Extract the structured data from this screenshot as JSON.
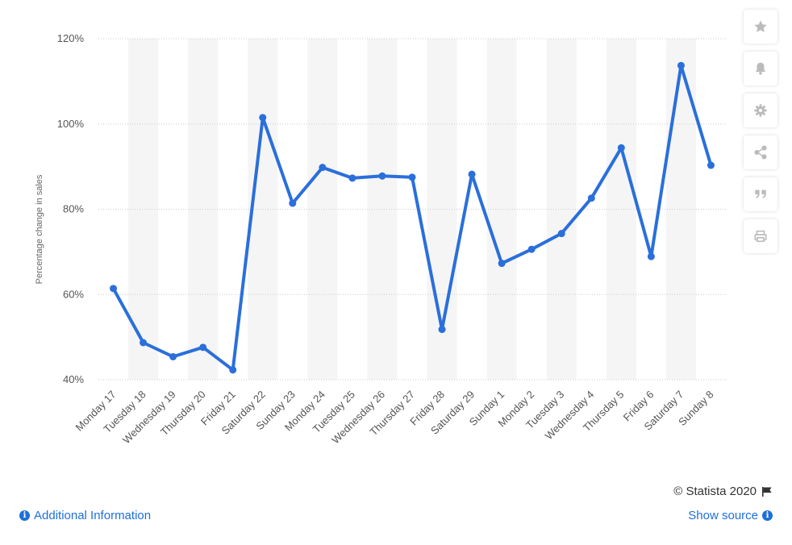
{
  "chart_data": {
    "type": "line",
    "ylabel": "Percentage change in sales",
    "xlabel": "",
    "ylim": [
      40,
      120
    ],
    "yticks": [
      40,
      60,
      80,
      100,
      120
    ],
    "ytick_labels": [
      "40%",
      "60%",
      "80%",
      "100%",
      "120%"
    ],
    "grid": "horizontal dotted, alternating vertical bands",
    "categories": [
      "Monday 17",
      "Tuesday 18",
      "Wednesday 19",
      "Thursday 20",
      "Friday 21",
      "Saturday 22",
      "Sunday 23",
      "Monday 24",
      "Tuesday 25",
      "Wednesday 26",
      "Thursday 27",
      "Friday 28",
      "Saturday 29",
      "Sunday 1",
      "Monday 2",
      "Tuesday 3",
      "Wednesday 4",
      "Thursday 5",
      "Friday 6",
      "Saturday 7",
      "Sunday 8"
    ],
    "series": [
      {
        "values": [
          61.4,
          48.7,
          45.4,
          47.6,
          42.3,
          101.5,
          81.4,
          89.8,
          87.3,
          87.8,
          87.5,
          51.8,
          88.2,
          67.3,
          70.6,
          74.3,
          82.6,
          94.4,
          68.9,
          113.7,
          90.3
        ]
      }
    ],
    "colors": {
      "line": "#2a6fdb",
      "band": "#f5f5f5",
      "grid": "#cccccc"
    }
  },
  "toolbar": {
    "buttons": [
      {
        "name": "star-icon"
      },
      {
        "name": "bell-icon"
      },
      {
        "name": "gear-icon"
      },
      {
        "name": "share-icon"
      },
      {
        "name": "quote-icon"
      },
      {
        "name": "print-icon"
      }
    ]
  },
  "footer": {
    "copyright": "© Statista 2020",
    "additional_info": "Additional Information",
    "show_source": "Show source"
  }
}
